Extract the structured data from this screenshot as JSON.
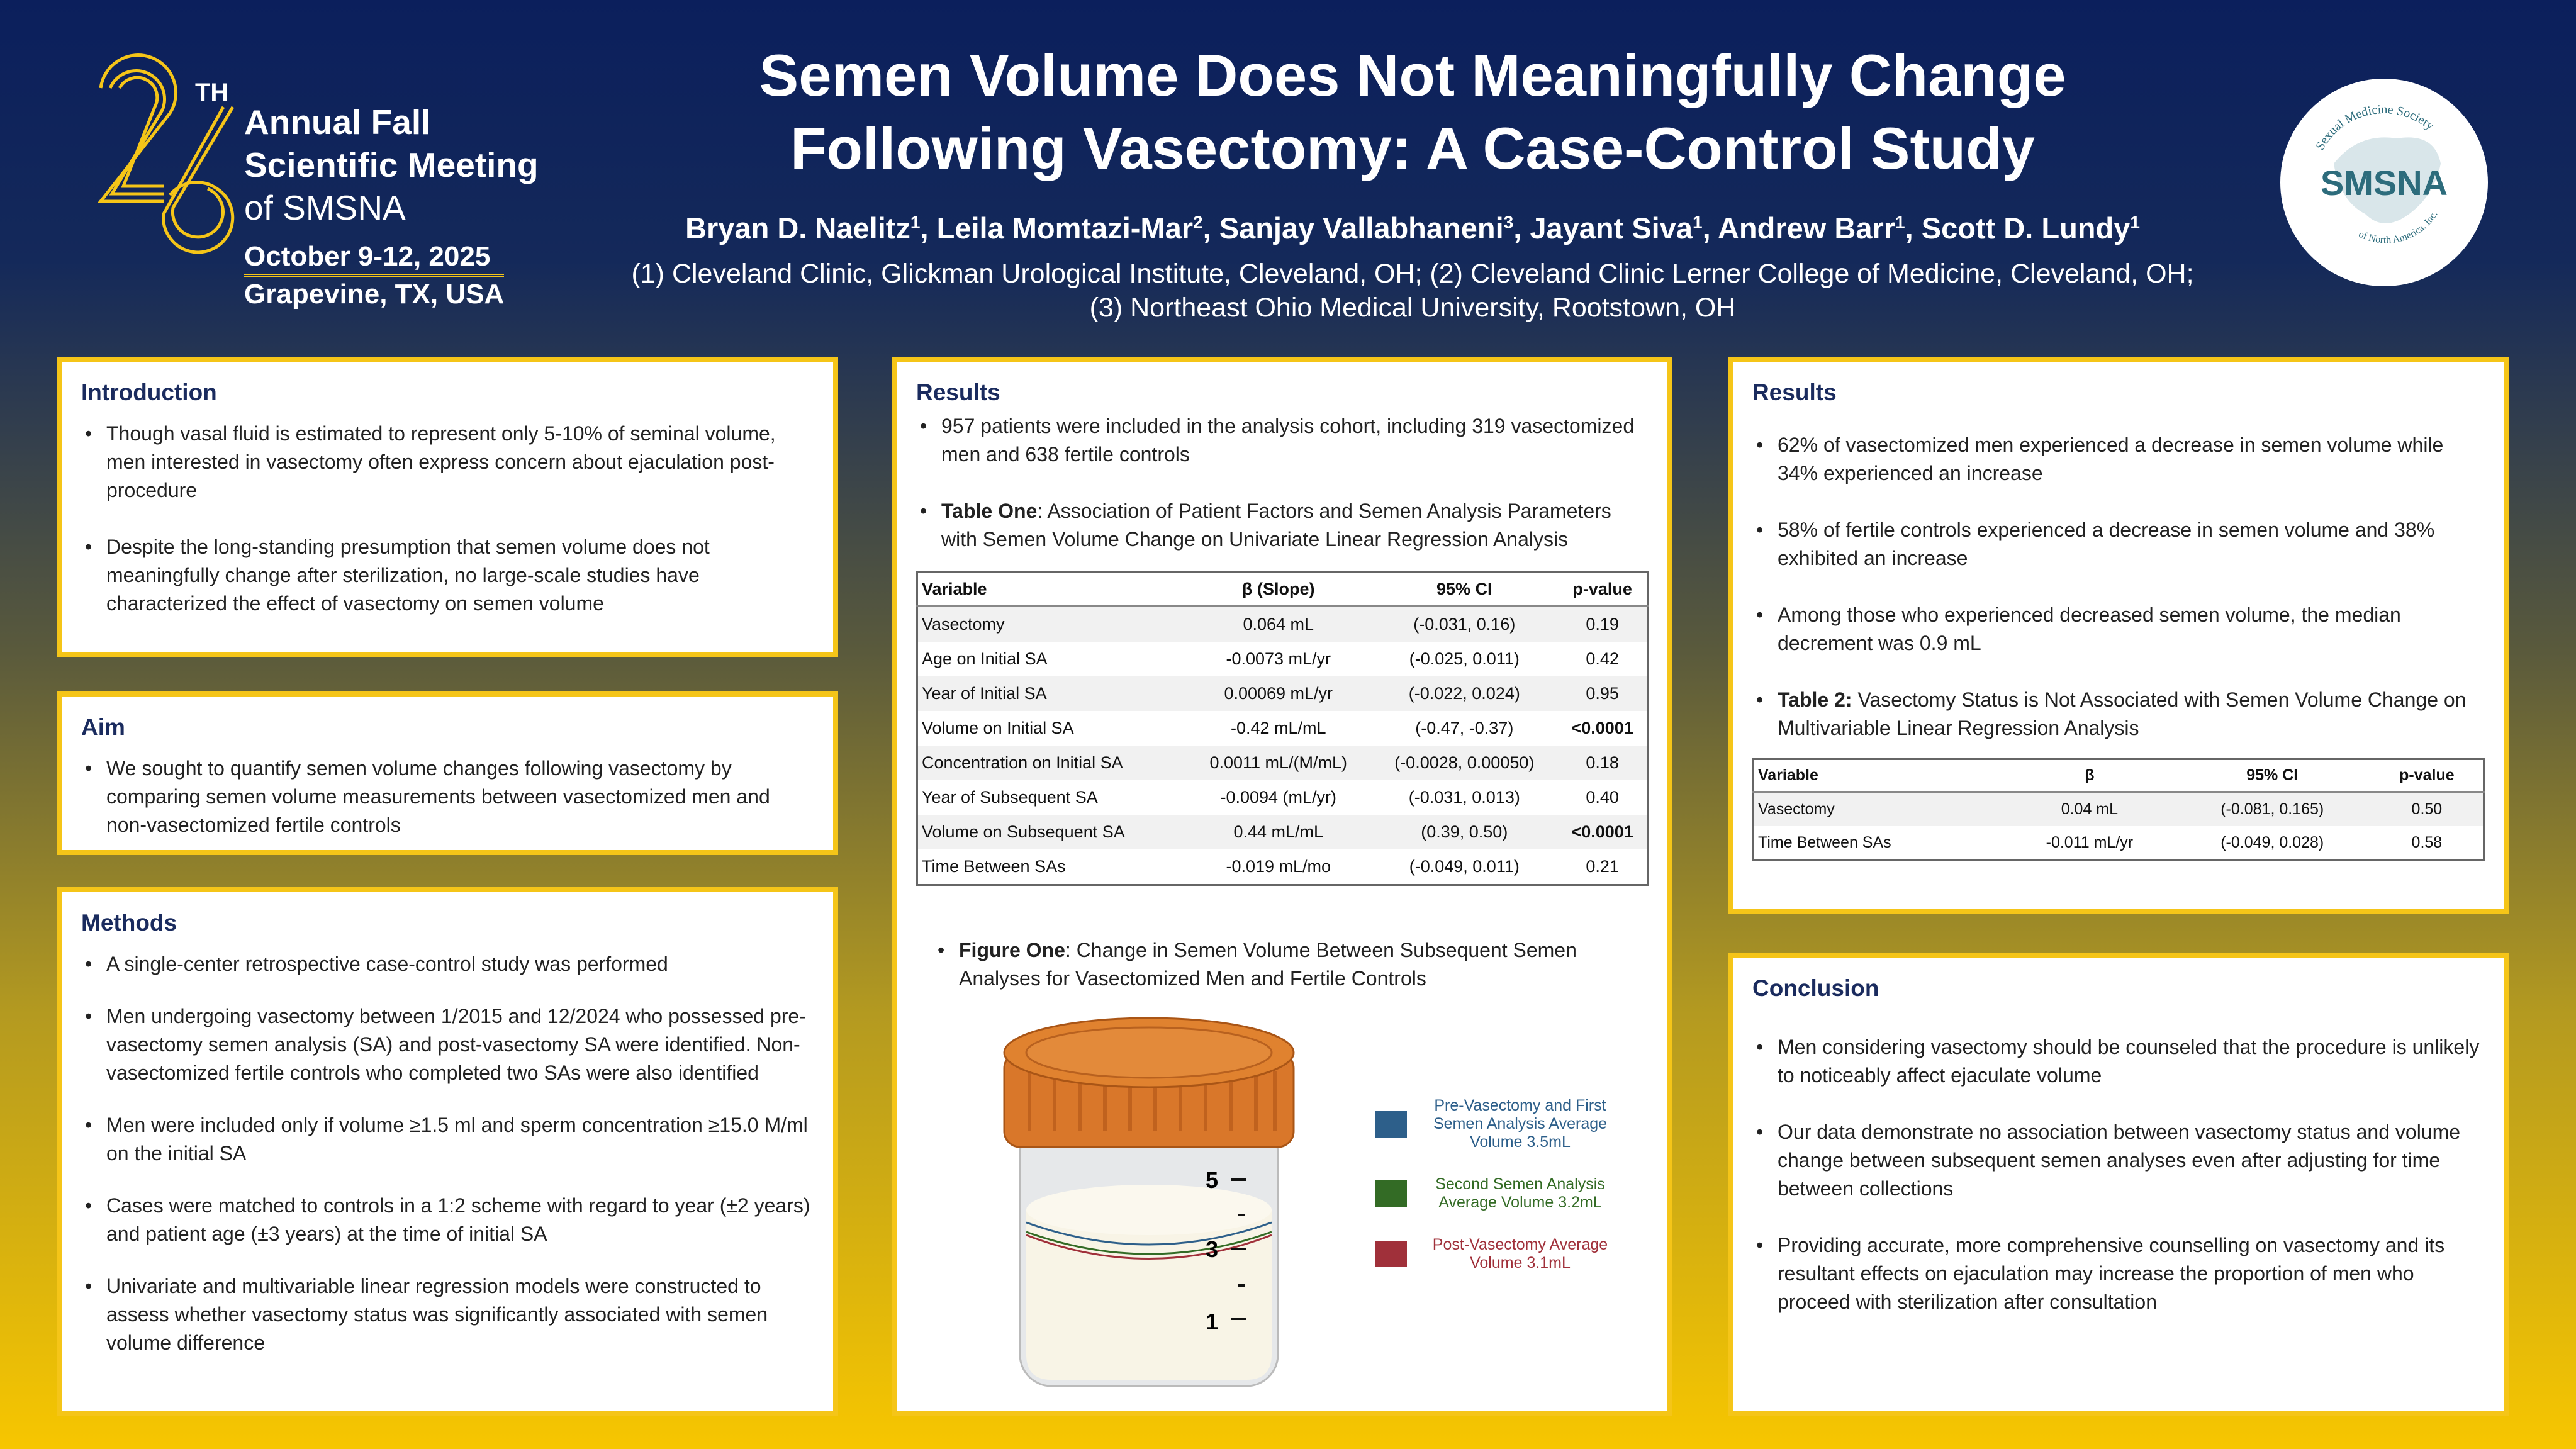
{
  "logo": {
    "number": "26",
    "suffix": "TH",
    "line1": "Annual Fall",
    "line2": "Scientific Meeting",
    "line3": "of SMSNA",
    "date": "October 9-12, 2025",
    "place": "Grapevine, TX, USA"
  },
  "smsna_logo": {
    "acronym": "SMSNA",
    "ring_top": "Sexual Medicine Society",
    "ring_bottom": "of North America, Inc."
  },
  "title": {
    "line1": "Semen Volume Does Not Meaningfully Change",
    "line2": "Following Vasectomy: A Case-Control Study"
  },
  "authors": [
    {
      "name": "Bryan D. Naelitz",
      "aff": "1"
    },
    {
      "name": "Leila Momtazi-Mar",
      "aff": "2"
    },
    {
      "name": "Sanjay Vallabhaneni",
      "aff": "3"
    },
    {
      "name": "Jayant Siva",
      "aff": "1"
    },
    {
      "name": "Andrew Barr",
      "aff": "1"
    },
    {
      "name": "Scott D. Lundy",
      "aff": "1"
    }
  ],
  "affiliations": {
    "line1": "(1) Cleveland Clinic, Glickman Urological Institute, Cleveland, OH;  (2) Cleveland Clinic Lerner College of Medicine, Cleveland, OH;",
    "line2": "(3) Northeast Ohio Medical University, Rootstown, OH"
  },
  "introduction": {
    "heading": "Introduction",
    "bullets": [
      "Though vasal fluid is estimated to represent only 5-10% of seminal volume, men interested in vasectomy often express concern about ejaculation post-procedure",
      "Despite the long-standing presumption that semen volume does not meaningfully change after sterilization, no large-scale studies have characterized the effect of vasectomy on semen volume"
    ]
  },
  "aim": {
    "heading": "Aim",
    "bullets": [
      "We sought to quantify semen volume changes following vasectomy by comparing semen volume measurements between vasectomized men and non-vasectomized fertile controls"
    ]
  },
  "methods": {
    "heading": "Methods",
    "bullets": [
      "A single-center retrospective case-control study was performed",
      "Men undergoing vasectomy between 1/2015 and 12/2024 who possessed pre-vasectomy semen analysis (SA) and post-vasectomy SA were identified. Non-vasectomized fertile controls who completed two SAs were also identified",
      "Men were included only if volume ≥1.5 ml and sperm concentration ≥15.0 M/ml on the initial SA",
      "Cases were matched to controls in a 1:2 scheme with regard to year (±2 years) and patient age (±3 years) at the time of initial SA",
      "Univariate and multivariable linear regression models were constructed to assess whether vasectomy status was significantly associated with semen volume difference"
    ]
  },
  "results1": {
    "heading": "Results",
    "bullet1": "957 patients were included in the analysis cohort, including 319 vasectomized men and 638 fertile controls",
    "table_label": "Table One",
    "table_caption": ": Association of Patient Factors and Semen Analysis Parameters with Semen Volume Change on Univariate Linear Regression Analysis",
    "table": {
      "headers": [
        "Variable",
        "β (Slope)",
        "95% CI",
        "p-value"
      ],
      "rows": [
        [
          "Vasectomy",
          "0.064 mL",
          "(-0.031, 0.16)",
          "0.19"
        ],
        [
          "Age on Initial SA",
          "-0.0073 mL/yr",
          "(-0.025, 0.011)",
          "0.42"
        ],
        [
          "Year of Initial SA",
          "0.00069 mL/yr",
          "(-0.022, 0.024)",
          "0.95"
        ],
        [
          "Volume on Initial SA",
          "-0.42 mL/mL",
          "(-0.47, -0.37)",
          "<0.0001"
        ],
        [
          "Concentration on Initial SA",
          "0.0011 mL/(M/mL)",
          "(-0.0028, 0.00050)",
          "0.18"
        ],
        [
          "Year of Subsequent SA",
          "-0.0094 (mL/yr)",
          "(-0.031, 0.013)",
          "0.40"
        ],
        [
          "Volume on Subsequent SA",
          "0.44 mL/mL",
          "(0.39, 0.50)",
          "<0.0001"
        ],
        [
          "Time Between SAs",
          "-0.019 mL/mo",
          "(-0.049, 0.011)",
          "0.21"
        ]
      ]
    },
    "figure_label": "Figure One",
    "figure_caption": ": Change in Semen Volume Between Subsequent Semen Analyses for Vasectomized Men and Fertile Controls",
    "figure": {
      "scale_labels": [
        "5",
        "3",
        "1"
      ],
      "legend": [
        {
          "text": "Pre-Vasectomy and First Semen Analysis Average Volume 3.5mL",
          "color": "#2d5f8a"
        },
        {
          "text": "Second Semen Analysis Average Volume 3.2mL",
          "color": "#336b25"
        },
        {
          "text": "Post-Vasectomy Average Volume 3.1mL",
          "color": "#a0303a"
        }
      ]
    }
  },
  "results2": {
    "heading": "Results",
    "bullets": [
      "62% of vasectomized men experienced a decrease in semen volume while 34% experienced an increase",
      "58% of fertile controls experienced a decrease in semen volume and 38% exhibited an increase",
      "Among those who experienced decreased semen volume, the median decrement was 0.9 mL"
    ],
    "table_label": "Table 2:",
    "table_caption": " Vasectomy Status is Not Associated with Semen Volume Change on Multivariable Linear Regression Analysis",
    "table": {
      "headers": [
        "Variable",
        "β",
        "95% CI",
        "p-value"
      ],
      "rows": [
        [
          "Vasectomy",
          "0.04 mL",
          "(-0.081, 0.165)",
          "0.50"
        ],
        [
          "Time Between SAs",
          "-0.011 mL/yr",
          "(-0.049, 0.028)",
          "0.58"
        ]
      ]
    }
  },
  "conclusion": {
    "heading": "Conclusion",
    "bullets": [
      "Men considering vasectomy should be counseled that the procedure is unlikely to noticeably affect ejaculate volume",
      "Our data demonstrate no association between vasectomy status and volume change between subsequent semen analyses even after adjusting for time between collections",
      "Providing accurate, more comprehensive counselling on vasectomy and its resultant effects on ejaculation may increase the proportion of men who proceed with sterilization after consultation"
    ]
  }
}
